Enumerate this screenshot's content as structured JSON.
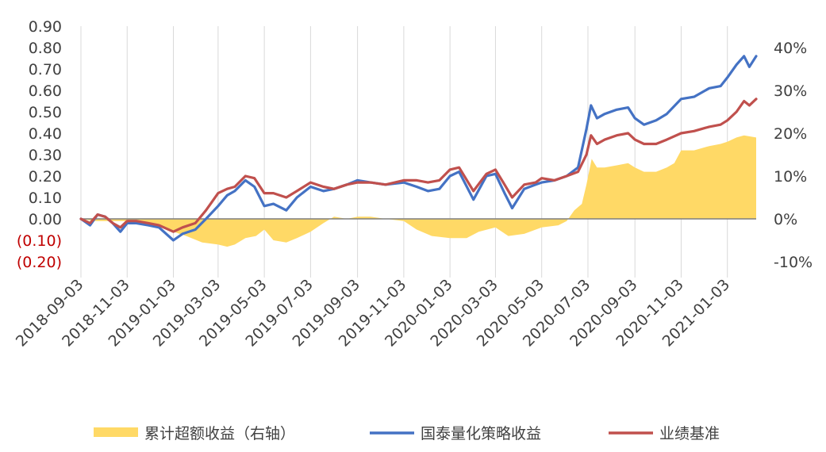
{
  "chart_data": {
    "type": "line",
    "x_start": "2018-09-03",
    "x_end": "2021-02-10",
    "x_ticks": [
      "2018-09-03",
      "2018-11-03",
      "2019-01-03",
      "2019-03-03",
      "2019-05-03",
      "2019-07-03",
      "2019-09-03",
      "2019-11-03",
      "2020-01-03",
      "2020-03-03",
      "2020-05-03",
      "2020-07-03",
      "2020-09-03",
      "2020-11-03",
      "2021-01-03"
    ],
    "y_left": {
      "min": -0.2,
      "max": 0.9,
      "ticks": [
        0.9,
        0.8,
        0.7,
        0.6,
        0.5,
        0.4,
        0.3,
        0.2,
        0.1,
        0,
        -0.1,
        -0.2
      ],
      "tick_labels": [
        "0.90",
        "0.80",
        "0.70",
        "0.60",
        "0.50",
        "0.40",
        "0.30",
        "0.20",
        "0.10",
        "0.00",
        "(0.10)",
        "(0.20)"
      ]
    },
    "y_right": {
      "min": -0.1,
      "max": 0.45,
      "ticks": [
        0.4,
        0.3,
        0.2,
        0.1,
        0,
        -0.1
      ],
      "tick_labels": [
        "40%",
        "30%",
        "20%",
        "10%",
        "0%",
        "-10%"
      ]
    },
    "grid": "vertical",
    "legend_position": "bottom",
    "series": [
      {
        "name": "累计超额收益（右轴）",
        "kind": "area",
        "axis": "right",
        "color": "#FFD966",
        "points": [
          [
            "2018-09-03",
            0.0
          ],
          [
            "2018-09-20",
            -0.005
          ],
          [
            "2018-10-10",
            -0.005
          ],
          [
            "2018-11-03",
            -0.005
          ],
          [
            "2018-12-01",
            -0.01
          ],
          [
            "2018-12-20",
            -0.02
          ],
          [
            "2019-01-03",
            -0.03
          ],
          [
            "2019-01-20",
            -0.04
          ],
          [
            "2019-02-10",
            -0.055
          ],
          [
            "2019-03-03",
            -0.06
          ],
          [
            "2019-03-15",
            -0.065
          ],
          [
            "2019-03-25",
            -0.06
          ],
          [
            "2019-04-08",
            -0.045
          ],
          [
            "2019-04-22",
            -0.04
          ],
          [
            "2019-05-03",
            -0.025
          ],
          [
            "2019-05-15",
            -0.05
          ],
          [
            "2019-06-01",
            -0.055
          ],
          [
            "2019-06-15",
            -0.045
          ],
          [
            "2019-07-03",
            -0.03
          ],
          [
            "2019-07-20",
            -0.01
          ],
          [
            "2019-08-03",
            0.005
          ],
          [
            "2019-08-20",
            0.0
          ],
          [
            "2019-09-03",
            0.005
          ],
          [
            "2019-09-20",
            0.005
          ],
          [
            "2019-10-10",
            0.0
          ],
          [
            "2019-11-03",
            -0.005
          ],
          [
            "2019-11-20",
            -0.025
          ],
          [
            "2019-12-10",
            -0.04
          ],
          [
            "2020-01-03",
            -0.045
          ],
          [
            "2020-01-25",
            -0.045
          ],
          [
            "2020-02-10",
            -0.03
          ],
          [
            "2020-03-03",
            -0.02
          ],
          [
            "2020-03-20",
            -0.04
          ],
          [
            "2020-04-10",
            -0.035
          ],
          [
            "2020-05-03",
            -0.02
          ],
          [
            "2020-05-25",
            -0.015
          ],
          [
            "2020-06-05",
            -0.005
          ],
          [
            "2020-06-15",
            0.02
          ],
          [
            "2020-06-25",
            0.035
          ],
          [
            "2020-07-01",
            0.08
          ],
          [
            "2020-07-08",
            0.14
          ],
          [
            "2020-07-15",
            0.12
          ],
          [
            "2020-07-25",
            0.12
          ],
          [
            "2020-08-10",
            0.125
          ],
          [
            "2020-08-25",
            0.13
          ],
          [
            "2020-09-03",
            0.12
          ],
          [
            "2020-09-15",
            0.11
          ],
          [
            "2020-10-01",
            0.11
          ],
          [
            "2020-10-15",
            0.12
          ],
          [
            "2020-10-25",
            0.13
          ],
          [
            "2020-11-03",
            0.16
          ],
          [
            "2020-11-20",
            0.16
          ],
          [
            "2020-12-10",
            0.17
          ],
          [
            "2020-12-25",
            0.175
          ],
          [
            "2021-01-03",
            0.18
          ],
          [
            "2021-01-15",
            0.19
          ],
          [
            "2021-01-25",
            0.195
          ],
          [
            "2021-02-10",
            0.19
          ]
        ]
      },
      {
        "name": "国泰量化策略收益",
        "kind": "line",
        "axis": "left",
        "color": "#4472C4",
        "points": [
          [
            "2018-09-03",
            0.0
          ],
          [
            "2018-09-15",
            -0.03
          ],
          [
            "2018-09-25",
            0.02
          ],
          [
            "2018-10-05",
            0.01
          ],
          [
            "2018-10-15",
            -0.02
          ],
          [
            "2018-10-25",
            -0.06
          ],
          [
            "2018-11-03",
            -0.02
          ],
          [
            "2018-11-15",
            -0.02
          ],
          [
            "2018-12-01",
            -0.03
          ],
          [
            "2018-12-15",
            -0.04
          ],
          [
            "2019-01-03",
            -0.1
          ],
          [
            "2019-01-15",
            -0.07
          ],
          [
            "2019-02-01",
            -0.05
          ],
          [
            "2019-02-15",
            0.0
          ],
          [
            "2019-03-03",
            0.06
          ],
          [
            "2019-03-15",
            0.11
          ],
          [
            "2019-03-25",
            0.13
          ],
          [
            "2019-04-08",
            0.18
          ],
          [
            "2019-04-20",
            0.15
          ],
          [
            "2019-05-03",
            0.06
          ],
          [
            "2019-05-15",
            0.07
          ],
          [
            "2019-06-01",
            0.04
          ],
          [
            "2019-06-15",
            0.1
          ],
          [
            "2019-07-03",
            0.15
          ],
          [
            "2019-07-20",
            0.13
          ],
          [
            "2019-08-03",
            0.14
          ],
          [
            "2019-08-20",
            0.16
          ],
          [
            "2019-09-03",
            0.18
          ],
          [
            "2019-09-20",
            0.17
          ],
          [
            "2019-10-10",
            0.16
          ],
          [
            "2019-11-03",
            0.17
          ],
          [
            "2019-11-20",
            0.15
          ],
          [
            "2019-12-05",
            0.13
          ],
          [
            "2019-12-20",
            0.14
          ],
          [
            "2020-01-03",
            0.2
          ],
          [
            "2020-01-15",
            0.22
          ],
          [
            "2020-02-03",
            0.09
          ],
          [
            "2020-02-20",
            0.2
          ],
          [
            "2020-03-03",
            0.21
          ],
          [
            "2020-03-15",
            0.12
          ],
          [
            "2020-03-25",
            0.05
          ],
          [
            "2020-04-10",
            0.14
          ],
          [
            "2020-04-25",
            0.16
          ],
          [
            "2020-05-03",
            0.17
          ],
          [
            "2020-05-20",
            0.18
          ],
          [
            "2020-06-05",
            0.2
          ],
          [
            "2020-06-20",
            0.24
          ],
          [
            "2020-07-01",
            0.42
          ],
          [
            "2020-07-07",
            0.53
          ],
          [
            "2020-07-15",
            0.47
          ],
          [
            "2020-07-25",
            0.49
          ],
          [
            "2020-08-10",
            0.51
          ],
          [
            "2020-08-25",
            0.52
          ],
          [
            "2020-09-03",
            0.47
          ],
          [
            "2020-09-15",
            0.44
          ],
          [
            "2020-10-01",
            0.46
          ],
          [
            "2020-10-15",
            0.49
          ],
          [
            "2020-11-03",
            0.56
          ],
          [
            "2020-11-20",
            0.57
          ],
          [
            "2020-12-10",
            0.61
          ],
          [
            "2020-12-25",
            0.62
          ],
          [
            "2021-01-03",
            0.66
          ],
          [
            "2021-01-15",
            0.72
          ],
          [
            "2021-01-25",
            0.76
          ],
          [
            "2021-02-01",
            0.71
          ],
          [
            "2021-02-10",
            0.76
          ]
        ]
      },
      {
        "name": "业绩基准",
        "kind": "line",
        "axis": "left",
        "color": "#C0504D",
        "points": [
          [
            "2018-09-03",
            0.0
          ],
          [
            "2018-09-15",
            -0.02
          ],
          [
            "2018-09-25",
            0.02
          ],
          [
            "2018-10-05",
            0.01
          ],
          [
            "2018-10-15",
            -0.02
          ],
          [
            "2018-10-25",
            -0.04
          ],
          [
            "2018-11-03",
            -0.01
          ],
          [
            "2018-11-15",
            -0.01
          ],
          [
            "2018-12-01",
            -0.02
          ],
          [
            "2018-12-15",
            -0.03
          ],
          [
            "2019-01-03",
            -0.06
          ],
          [
            "2019-01-15",
            -0.04
          ],
          [
            "2019-02-01",
            -0.02
          ],
          [
            "2019-02-15",
            0.04
          ],
          [
            "2019-03-03",
            0.12
          ],
          [
            "2019-03-15",
            0.14
          ],
          [
            "2019-03-25",
            0.15
          ],
          [
            "2019-04-08",
            0.2
          ],
          [
            "2019-04-20",
            0.19
          ],
          [
            "2019-05-03",
            0.12
          ],
          [
            "2019-05-15",
            0.12
          ],
          [
            "2019-06-01",
            0.1
          ],
          [
            "2019-06-15",
            0.13
          ],
          [
            "2019-07-03",
            0.17
          ],
          [
            "2019-07-20",
            0.15
          ],
          [
            "2019-08-03",
            0.14
          ],
          [
            "2019-08-20",
            0.16
          ],
          [
            "2019-09-03",
            0.17
          ],
          [
            "2019-09-20",
            0.17
          ],
          [
            "2019-10-10",
            0.16
          ],
          [
            "2019-11-03",
            0.18
          ],
          [
            "2019-11-20",
            0.18
          ],
          [
            "2019-12-05",
            0.17
          ],
          [
            "2019-12-20",
            0.18
          ],
          [
            "2020-01-03",
            0.23
          ],
          [
            "2020-01-15",
            0.24
          ],
          [
            "2020-02-03",
            0.13
          ],
          [
            "2020-02-20",
            0.21
          ],
          [
            "2020-03-03",
            0.23
          ],
          [
            "2020-03-15",
            0.16
          ],
          [
            "2020-03-25",
            0.1
          ],
          [
            "2020-04-10",
            0.16
          ],
          [
            "2020-04-25",
            0.17
          ],
          [
            "2020-05-03",
            0.19
          ],
          [
            "2020-05-20",
            0.18
          ],
          [
            "2020-06-05",
            0.2
          ],
          [
            "2020-06-20",
            0.22
          ],
          [
            "2020-07-01",
            0.3
          ],
          [
            "2020-07-07",
            0.39
          ],
          [
            "2020-07-15",
            0.35
          ],
          [
            "2020-07-25",
            0.37
          ],
          [
            "2020-08-10",
            0.39
          ],
          [
            "2020-08-25",
            0.4
          ],
          [
            "2020-09-03",
            0.37
          ],
          [
            "2020-09-15",
            0.35
          ],
          [
            "2020-10-01",
            0.35
          ],
          [
            "2020-10-15",
            0.37
          ],
          [
            "2020-11-03",
            0.4
          ],
          [
            "2020-11-20",
            0.41
          ],
          [
            "2020-12-10",
            0.43
          ],
          [
            "2020-12-25",
            0.44
          ],
          [
            "2021-01-03",
            0.46
          ],
          [
            "2021-01-15",
            0.5
          ],
          [
            "2021-01-25",
            0.55
          ],
          [
            "2021-02-01",
            0.53
          ],
          [
            "2021-02-10",
            0.56
          ]
        ]
      }
    ]
  }
}
